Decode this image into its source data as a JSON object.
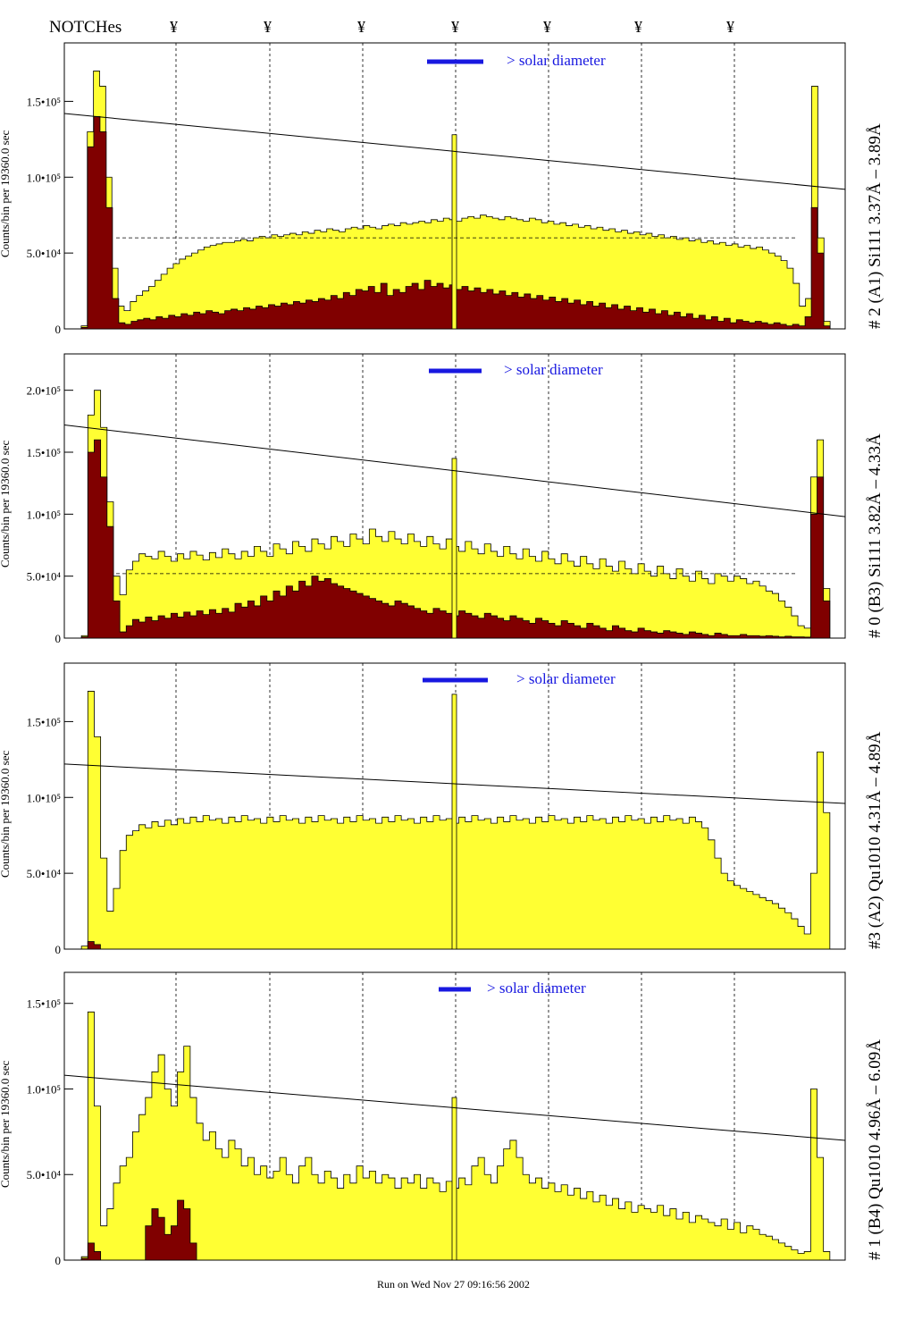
{
  "header": {
    "notches_label": "NOTCHes",
    "notch_marker": "¥"
  },
  "footer": {
    "run_text": "Run on Wed Nov 27 09:16:56 2002"
  },
  "colors": {
    "fill_total": "#ffff33",
    "fill_component": "#800000",
    "annotation_blue": "#1010c0",
    "annotation_purple": "#800080",
    "solar_bar": "#1818e0"
  },
  "chart_data": [
    {
      "type": "area",
      "right_label": "# 2 (A1) Si111  3.37Å – 3.89Å",
      "ylabel": "Counts/bin per  19360.0 sec",
      "ytick_labels": [
        "0",
        "5.0•10⁴",
        "1.0•10⁵",
        "1.5•10⁵"
      ],
      "ylim": [
        0,
        185000
      ],
      "legend": "> solar diameter",
      "series": [
        {
          "values": [
            0,
            2000,
            130000,
            170000,
            160000,
            100000,
            40000,
            15000,
            12000,
            18000,
            22000,
            25000,
            28000,
            32000,
            36000,
            40000,
            43000,
            46000,
            48000,
            50000,
            52000,
            54000,
            55000,
            56000,
            57000,
            57000,
            58000,
            59000,
            58000,
            60000,
            61000,
            60000,
            62000,
            61000,
            62000,
            63000,
            62000,
            64000,
            63000,
            65000,
            64000,
            66000,
            65000,
            64000,
            66000,
            67000,
            66000,
            68000,
            67000,
            66000,
            68000,
            69000,
            68000,
            70000,
            69000,
            70000,
            71000,
            70000,
            72000,
            71000,
            73000,
            72000,
            71000,
            73000,
            74000,
            73000,
            75000,
            74000,
            73000,
            72000,
            74000,
            73000,
            72000,
            71000,
            73000,
            72000,
            70000,
            71000,
            69000,
            70000,
            68000,
            69000,
            67000,
            68000,
            66000,
            67000,
            65000,
            66000,
            64000,
            65000,
            63000,
            64000,
            62000,
            63000,
            61000,
            62000,
            60000,
            61000,
            59000,
            60000,
            58000,
            59000,
            57000,
            58000,
            56000,
            57000,
            55000,
            56000,
            54000,
            55000,
            53000,
            54000,
            52000,
            50000,
            48000,
            45000,
            40000,
            30000,
            15000,
            20000,
            160000,
            60000,
            5000,
            0
          ]
        },
        {
          "values": [
            0,
            1000,
            120000,
            140000,
            130000,
            80000,
            20000,
            4000,
            3000,
            5000,
            6000,
            7000,
            6000,
            8000,
            7000,
            9000,
            8000,
            10000,
            9000,
            11000,
            10000,
            12000,
            11000,
            10000,
            12000,
            13000,
            12000,
            14000,
            13000,
            15000,
            14000,
            16000,
            15000,
            17000,
            16000,
            18000,
            17000,
            19000,
            18000,
            20000,
            19000,
            22000,
            20000,
            24000,
            22000,
            26000,
            25000,
            28000,
            24000,
            30000,
            22000,
            26000,
            24000,
            28000,
            30000,
            26000,
            32000,
            28000,
            30000,
            27000,
            29000,
            26000,
            28000,
            25000,
            27000,
            24000,
            26000,
            23000,
            25000,
            22000,
            24000,
            21000,
            23000,
            20000,
            22000,
            19000,
            21000,
            18000,
            20000,
            17000,
            19000,
            16000,
            18000,
            15000,
            17000,
            14000,
            16000,
            13000,
            15000,
            12000,
            14000,
            11000,
            13000,
            10000,
            12000,
            9000,
            11000,
            8000,
            10000,
            7000,
            9000,
            6000,
            8000,
            5000,
            7000,
            4000,
            6000,
            5000,
            4000,
            5000,
            4000,
            3000,
            4000,
            3000,
            2000,
            3000,
            2000,
            8000,
            80000,
            50000,
            2000,
            0
          ]
        }
      ],
      "fit_line": {
        "start": 142000,
        "end": 92000
      },
      "dashed_model": 60000,
      "spike": 128000
    },
    {
      "type": "area",
      "right_label": "# 0 (B3) Si111  3.82Å – 4.33Å",
      "ylabel": "Counts/bin per  19360.0 sec",
      "ytick_labels": [
        "0",
        "5.0•10⁴",
        "1.0•10⁵",
        "1.5•10⁵",
        "2.0•10⁵"
      ],
      "ylim": [
        0,
        225000
      ],
      "legend": "> solar diameter",
      "series": [
        {
          "values": [
            0,
            2000,
            180000,
            200000,
            170000,
            110000,
            50000,
            35000,
            55000,
            62000,
            68000,
            66000,
            64000,
            70000,
            66000,
            62000,
            68000,
            64000,
            70000,
            67000,
            63000,
            69000,
            65000,
            72000,
            68000,
            64000,
            70000,
            66000,
            74000,
            70000,
            66000,
            76000,
            72000,
            68000,
            78000,
            74000,
            70000,
            80000,
            76000,
            72000,
            82000,
            78000,
            74000,
            84000,
            80000,
            76000,
            88000,
            82000,
            78000,
            86000,
            80000,
            76000,
            84000,
            78000,
            74000,
            82000,
            76000,
            72000,
            80000,
            74000,
            70000,
            78000,
            72000,
            68000,
            76000,
            70000,
            66000,
            74000,
            68000,
            64000,
            72000,
            66000,
            62000,
            70000,
            64000,
            60000,
            68000,
            62000,
            58000,
            66000,
            60000,
            56000,
            64000,
            58000,
            54000,
            62000,
            56000,
            52000,
            60000,
            54000,
            50000,
            58000,
            52000,
            48000,
            56000,
            50000,
            46000,
            54000,
            48000,
            44000,
            52000,
            50000,
            46000,
            50000,
            48000,
            44000,
            46000,
            42000,
            38000,
            36000,
            30000,
            25000,
            18000,
            10000,
            8000,
            130000,
            160000,
            40000,
            0
          ]
        },
        {
          "values": [
            0,
            1000,
            150000,
            160000,
            130000,
            90000,
            30000,
            5000,
            10000,
            15000,
            13000,
            17000,
            14000,
            18000,
            16000,
            20000,
            17000,
            21000,
            18000,
            22000,
            19000,
            23000,
            20000,
            24000,
            21000,
            28000,
            25000,
            30000,
            26000,
            34000,
            30000,
            38000,
            34000,
            42000,
            38000,
            46000,
            42000,
            50000,
            46000,
            48000,
            44000,
            42000,
            40000,
            38000,
            36000,
            34000,
            32000,
            30000,
            28000,
            26000,
            30000,
            28000,
            26000,
            24000,
            22000,
            20000,
            24000,
            22000,
            20000,
            18000,
            22000,
            20000,
            18000,
            16000,
            20000,
            18000,
            16000,
            14000,
            18000,
            16000,
            14000,
            12000,
            16000,
            14000,
            12000,
            10000,
            14000,
            12000,
            10000,
            8000,
            12000,
            10000,
            8000,
            6000,
            10000,
            8000,
            6000,
            5000,
            8000,
            6000,
            5000,
            4000,
            6000,
            5000,
            4000,
            3000,
            5000,
            4000,
            3000,
            2000,
            4000,
            3000,
            2000,
            2000,
            3000,
            2000,
            2000,
            1500,
            2000,
            1500,
            1000,
            1500,
            1000,
            1000,
            800,
            100000,
            130000,
            30000,
            0
          ]
        }
      ],
      "fit_line": {
        "start": 172000,
        "end": 98000
      },
      "dashed_model": 52000,
      "spike": 145000
    },
    {
      "type": "area",
      "right_label": "#3 (A2) Qu1010  4.31Å – 4.89Å",
      "ylabel": "Counts/bin per  19360.0 sec",
      "ytick_labels": [
        "0",
        "5.0•10⁴",
        "1.0•10⁵",
        "1.5•10⁵"
      ],
      "ylim": [
        0,
        185000
      ],
      "legend": "> solar diameter",
      "series": [
        {
          "values": [
            0,
            2000,
            170000,
            140000,
            60000,
            25000,
            40000,
            65000,
            75000,
            78000,
            82000,
            80000,
            84000,
            81000,
            85000,
            82000,
            86000,
            83000,
            87000,
            84000,
            88000,
            85000,
            86000,
            83000,
            87000,
            84000,
            88000,
            85000,
            86000,
            83000,
            87000,
            84000,
            88000,
            85000,
            86000,
            83000,
            87000,
            84000,
            88000,
            85000,
            86000,
            83000,
            87000,
            84000,
            88000,
            85000,
            86000,
            83000,
            87000,
            84000,
            88000,
            85000,
            86000,
            83000,
            87000,
            84000,
            88000,
            85000,
            86000,
            83000,
            87000,
            84000,
            88000,
            85000,
            86000,
            83000,
            87000,
            84000,
            88000,
            85000,
            86000,
            83000,
            87000,
            84000,
            88000,
            85000,
            86000,
            83000,
            87000,
            84000,
            88000,
            85000,
            86000,
            83000,
            87000,
            84000,
            88000,
            85000,
            86000,
            83000,
            87000,
            84000,
            88000,
            85000,
            86000,
            83000,
            87000,
            84000,
            80000,
            72000,
            60000,
            50000,
            45000,
            42000,
            40000,
            38000,
            36000,
            34000,
            32000,
            30000,
            27000,
            24000,
            20000,
            15000,
            10000,
            50000,
            130000,
            90000,
            0
          ]
        },
        {
          "values": [
            0,
            0,
            5000,
            3000,
            0,
            0,
            0,
            0,
            0,
            0,
            0,
            0,
            0,
            0,
            0,
            0,
            0,
            0,
            0,
            0,
            0,
            0,
            0,
            0,
            0,
            0,
            0,
            0,
            0,
            0,
            0,
            0,
            0,
            0,
            0,
            0,
            0,
            0,
            0,
            0,
            0,
            0,
            0,
            0,
            0,
            0,
            0,
            0,
            0,
            0,
            0,
            0,
            0,
            0,
            0,
            0,
            0,
            0,
            0,
            0,
            0,
            0,
            0,
            0,
            0,
            0,
            0,
            0,
            0,
            0,
            0,
            0,
            0,
            0,
            0,
            0,
            0,
            0,
            0,
            0,
            0,
            0,
            0,
            0,
            0,
            0,
            0,
            0,
            0,
            0,
            0,
            0,
            0,
            0,
            0,
            0,
            0,
            0,
            0,
            0,
            0,
            0,
            0,
            0,
            0,
            0,
            0,
            0,
            0,
            0,
            0,
            0,
            0,
            0,
            0,
            0,
            0,
            0,
            0,
            0
          ]
        }
      ],
      "fit_line": {
        "start": 122000,
        "end": 96000
      },
      "dashed_model": 0,
      "spike": 168000
    },
    {
      "type": "area",
      "right_label": "# 1 (B4) Qu1010 4.96Å – 6.09Å",
      "ylabel": "Counts/bin per  19360.0 sec",
      "ytick_labels": [
        "0",
        "5.0•10⁴",
        "1.0•10⁵",
        "1.5•10⁵"
      ],
      "ylim": [
        0,
        165000
      ],
      "legend": "> solar diameter",
      "series": [
        {
          "values": [
            0,
            2000,
            145000,
            90000,
            20000,
            30000,
            45000,
            55000,
            60000,
            75000,
            85000,
            95000,
            110000,
            120000,
            100000,
            90000,
            110000,
            125000,
            95000,
            80000,
            70000,
            75000,
            65000,
            60000,
            70000,
            65000,
            55000,
            60000,
            50000,
            55000,
            48000,
            52000,
            60000,
            50000,
            45000,
            55000,
            60000,
            50000,
            45000,
            52000,
            48000,
            42000,
            50000,
            45000,
            55000,
            48000,
            52000,
            45000,
            50000,
            48000,
            42000,
            48000,
            45000,
            50000,
            42000,
            48000,
            45000,
            40000,
            46000,
            42000,
            48000,
            44000,
            55000,
            60000,
            50000,
            45000,
            55000,
            65000,
            70000,
            60000,
            50000,
            45000,
            48000,
            42000,
            45000,
            40000,
            44000,
            38000,
            42000,
            36000,
            40000,
            34000,
            38000,
            32000,
            36000,
            30000,
            34000,
            28000,
            32000,
            30000,
            28000,
            32000,
            26000,
            30000,
            24000,
            28000,
            22000,
            26000,
            24000,
            22000,
            20000,
            24000,
            18000,
            22000,
            16000,
            20000,
            18000,
            15000,
            14000,
            12000,
            10000,
            8000,
            6000,
            4000,
            5000,
            100000,
            60000,
            5000,
            0
          ]
        },
        {
          "values": [
            0,
            1000,
            10000,
            5000,
            0,
            0,
            0,
            0,
            0,
            0,
            0,
            20000,
            30000,
            25000,
            15000,
            20000,
            35000,
            30000,
            10000,
            0,
            0,
            0,
            0,
            0,
            0,
            0,
            0,
            0,
            0,
            0,
            0,
            0,
            0,
            0,
            0,
            0,
            0,
            0,
            0,
            0,
            0,
            0,
            0,
            0,
            0,
            0,
            0,
            0,
            0,
            0,
            0,
            0,
            0,
            0,
            0,
            0,
            0,
            0,
            0,
            0,
            0,
            0,
            0,
            0,
            0,
            0,
            0,
            0,
            0,
            0,
            0,
            0,
            0,
            0,
            0,
            0,
            0,
            0,
            0,
            0,
            0,
            0,
            0,
            0,
            0,
            0,
            0,
            0,
            0,
            0,
            0,
            0,
            0,
            0,
            0,
            0,
            0,
            0,
            0,
            0,
            0,
            0,
            0,
            0,
            0,
            0,
            0,
            0,
            0,
            0,
            0,
            0,
            0,
            0,
            0,
            0,
            0,
            0,
            0
          ]
        }
      ],
      "fit_line": {
        "start": 108000,
        "end": 70000
      },
      "dashed_model": 0,
      "spike": 95000
    }
  ]
}
